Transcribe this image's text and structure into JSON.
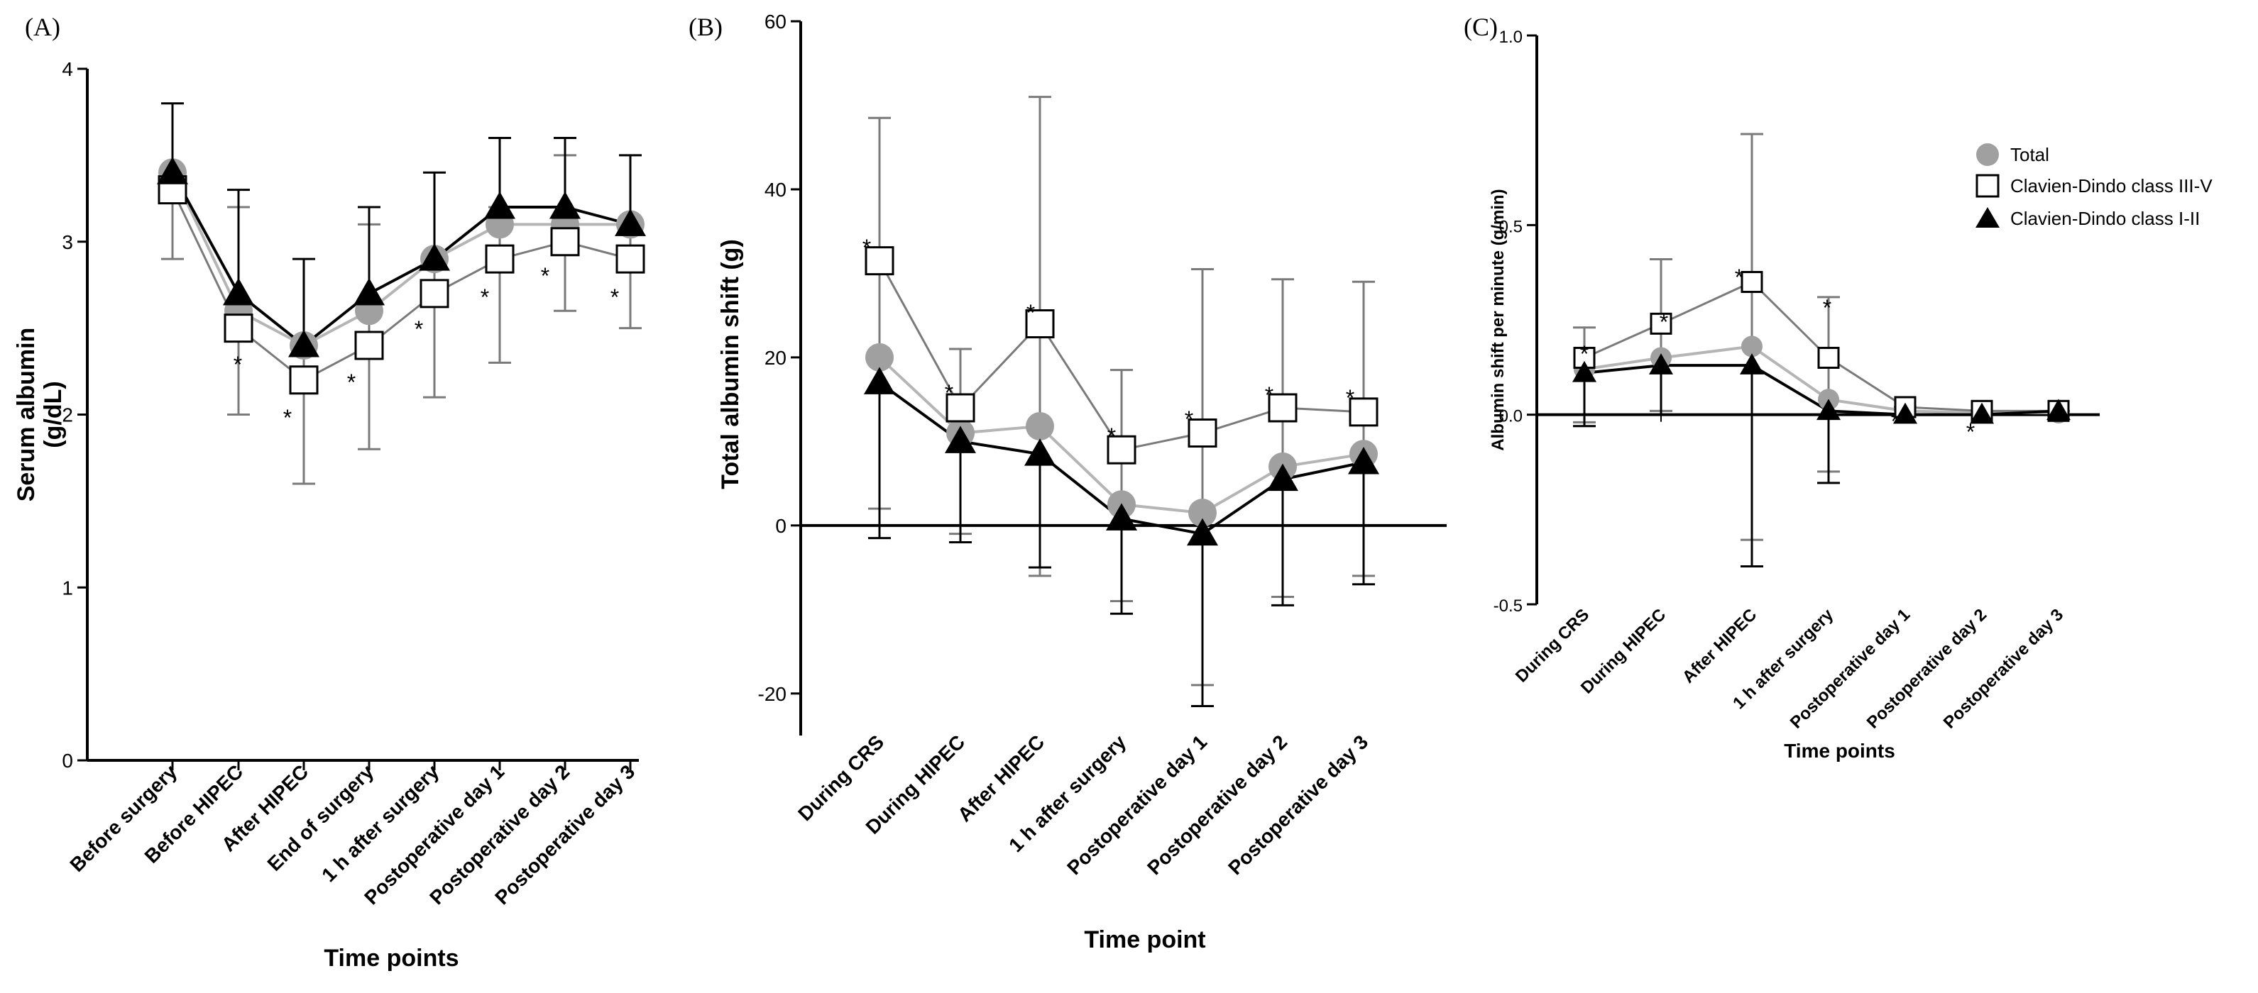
{
  "chart_data": [
    {
      "panel": "(A)",
      "type": "line",
      "xlabel": "Time points",
      "ylabel": [
        "Serum albumin",
        "(g/dL)"
      ],
      "categories": [
        "Before surgery",
        "Before HIPEC",
        "After HIPEC",
        "End of surgery",
        "1 h after surgery",
        "Postoperative day 1",
        "Postoperative day 2",
        "Postoperative day 3"
      ],
      "ylim": [
        0,
        4
      ],
      "yticks": [
        "0",
        "1",
        "2",
        "3",
        "4"
      ],
      "series": [
        {
          "name": "Total",
          "marker": "circle",
          "values": [
            3.4,
            2.6,
            2.4,
            2.6,
            2.9,
            3.1,
            3.1,
            3.1
          ]
        },
        {
          "name": "Clavien-Dindo class III-V",
          "marker": "square",
          "values": [
            3.3,
            2.5,
            2.2,
            2.4,
            2.7,
            2.9,
            3.0,
            2.9
          ],
          "error_low": [
            2.9,
            2.0,
            1.6,
            1.8,
            2.1,
            2.3,
            2.6,
            2.5
          ],
          "error_high": [
            3.4,
            3.2,
            2.4,
            3.1,
            2.9,
            3.2,
            3.5,
            3.1
          ]
        },
        {
          "name": "Clavien-Dindo class I-II",
          "marker": "triangle",
          "values": [
            3.4,
            2.7,
            2.4,
            2.7,
            2.9,
            3.2,
            3.2,
            3.1
          ],
          "error_high": [
            3.8,
            3.3,
            2.9,
            3.2,
            3.4,
            3.6,
            3.6,
            3.5
          ]
        }
      ],
      "asterisks": [
        "*",
        "*",
        "*",
        "*",
        "*",
        "*",
        "*"
      ]
    },
    {
      "panel": "(B)",
      "type": "line",
      "xlabel": "Time point",
      "ylabel": [
        "Total albumin shift (g)"
      ],
      "categories": [
        "During CRS",
        "During HIPEC",
        "After HIPEC",
        "1 h after surgery",
        "Postoperative day 1",
        "Postoperative day 2",
        "Postoperative day 3"
      ],
      "ylim": [
        -25,
        60
      ],
      "yticks": [
        "-20",
        "0",
        "20",
        "40",
        "60"
      ],
      "series": [
        {
          "name": "Total",
          "marker": "circle",
          "values": [
            20,
            11,
            11.8,
            2.5,
            1.5,
            7,
            8.5
          ]
        },
        {
          "name": "Clavien-Dindo class III-V",
          "marker": "square",
          "values": [
            31.5,
            14,
            24,
            9,
            11,
            14,
            13.5
          ],
          "error_low": [
            2,
            -1,
            -6,
            -9,
            -19,
            -8.5,
            -6
          ],
          "error_high": [
            48.5,
            21,
            51,
            18.5,
            30.5,
            29.3,
            29
          ]
        },
        {
          "name": "Clavien-Dindo class I-II",
          "marker": "triangle",
          "values": [
            17,
            10,
            8.5,
            0.8,
            -1,
            5.5,
            7.5
          ],
          "error_low": [
            -1.5,
            -2,
            -5,
            -10.5,
            -21.5,
            -9.5,
            -7
          ]
        }
      ],
      "asterisks": [
        "*",
        "*",
        "*",
        "*",
        "*",
        "*",
        "*"
      ]
    },
    {
      "panel": "(C)",
      "type": "line",
      "xlabel": "Time points",
      "ylabel": [
        "Albumin shift per minute (g/min)"
      ],
      "categories": [
        "During CRS",
        "During HIPEC",
        "After HIPEC",
        "1 h after surgery",
        "Postoperative day 1",
        "Postoperative day 2",
        "Postoperative day 3"
      ],
      "ylim": [
        -0.5,
        1.0
      ],
      "yticks": [
        "-0.5",
        "0.0",
        "0.5",
        "1.0"
      ],
      "series": [
        {
          "name": "Total",
          "marker": "circle",
          "values": [
            0.12,
            0.15,
            0.18,
            0.04,
            0.01,
            0.005,
            0.005
          ]
        },
        {
          "name": "Clavien-Dindo class III-V",
          "marker": "square",
          "values": [
            0.15,
            0.24,
            0.35,
            0.15,
            0.02,
            0.01,
            0.01
          ],
          "error_low": [
            -0.02,
            0.01,
            -0.33,
            -0.15,
            0.0,
            0.0,
            0.0
          ],
          "error_high": [
            0.23,
            0.41,
            0.74,
            0.31,
            0.02,
            0.01,
            0.01
          ]
        },
        {
          "name": "Clavien-Dindo class I-II",
          "marker": "triangle",
          "values": [
            0.11,
            0.13,
            0.13,
            0.01,
            0.0,
            0.0,
            0.01
          ],
          "error_low": [
            -0.03,
            0.0,
            -0.4,
            -0.18,
            0.0,
            0.0,
            0.0
          ]
        }
      ],
      "asterisks": [
        "*",
        "*",
        "*",
        "*",
        "*",
        "*"
      ],
      "legend": {
        "position": "right",
        "entries": [
          "Total",
          "Clavien-Dindo class III-V",
          "Clavien-Dindo class I-II"
        ]
      }
    }
  ],
  "colors": {
    "total": "#a0a0a0",
    "classIIIV": "#7a7a7a",
    "classIII": "#000000"
  }
}
